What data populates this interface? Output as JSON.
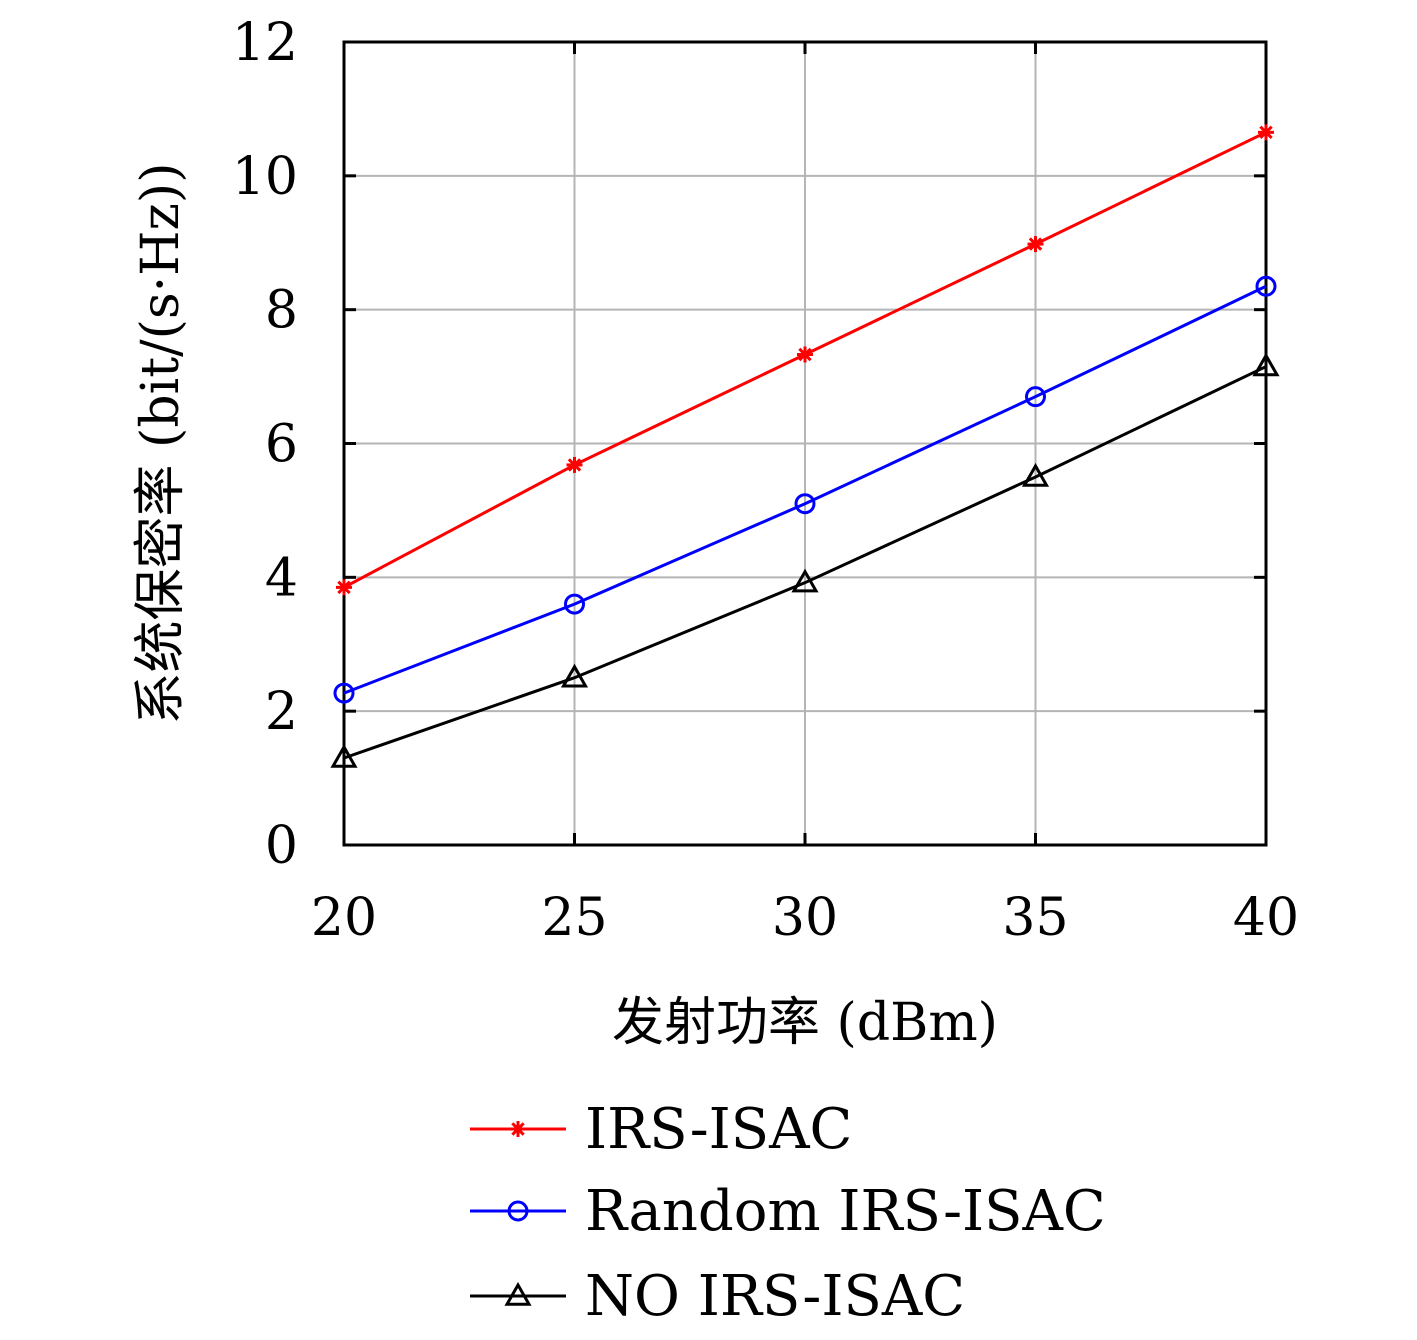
{
  "chart_data": {
    "type": "line",
    "xlabel": "发射功率 (dBm)",
    "ylabel": "系统保密率 (bit/(s·Hz))",
    "xlim": [
      20,
      40
    ],
    "ylim": [
      0,
      12
    ],
    "grid": true,
    "legend_position": "bottom",
    "x": [
      20,
      25,
      30,
      35,
      40
    ],
    "x_ticks": [
      "20",
      "25",
      "30",
      "35",
      "40"
    ],
    "y_ticks": [
      "0",
      "2",
      "4",
      "6",
      "8",
      "10",
      "12"
    ],
    "series": [
      {
        "name": "IRS-ISAC",
        "values": [
          3.85,
          5.68,
          7.33,
          8.98,
          10.65
        ],
        "color": "#ff0000",
        "marker": "asterisk"
      },
      {
        "name": "Random IRS-ISAC",
        "values": [
          2.27,
          3.6,
          5.1,
          6.7,
          8.35
        ],
        "color": "#0000ff",
        "marker": "circle"
      },
      {
        "name": "NO IRS-ISAC",
        "values": [
          1.3,
          2.5,
          3.92,
          5.5,
          7.15
        ],
        "color": "#000000",
        "marker": "triangle"
      }
    ]
  }
}
